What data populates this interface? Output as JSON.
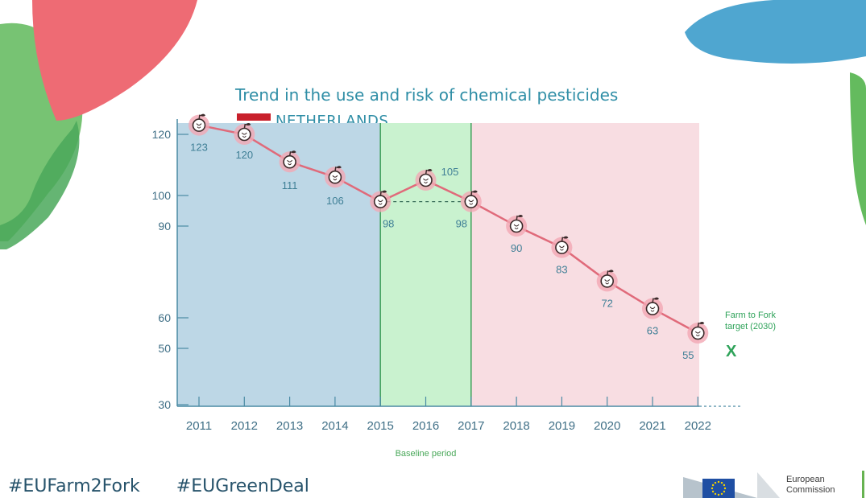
{
  "colors": {
    "accent": "#2f8ea6",
    "line": "#e06a7a",
    "marker": "#f2a7b4",
    "blue_period": "#bdd7e6",
    "green_period": "#c9f2cf",
    "pink_period": "#f8dde2",
    "target": "#2fa35a"
  },
  "header": {
    "title": "Trend in the use and risk of chemical pesticides",
    "country": "NETHERLANDS"
  },
  "footer": {
    "hashtags": [
      "#EUFarm2Fork",
      "#EUGreenDeal"
    ],
    "ec_line1": "European",
    "ec_line2": "Commission"
  },
  "chart_data": {
    "type": "line",
    "title": "Trend in the use and risk of chemical pesticides",
    "subtitle": "NETHERLANDS",
    "x": [
      2011,
      2012,
      2013,
      2014,
      2015,
      2016,
      2017,
      2018,
      2019,
      2020,
      2021,
      2022
    ],
    "series": [
      {
        "values": [
          123,
          120,
          111,
          106,
          98,
          105,
          98,
          90,
          83,
          72,
          63,
          55
        ]
      }
    ],
    "y_ticks": [
      30,
      50,
      60,
      90,
      100,
      120
    ],
    "ylim": [
      30,
      125
    ],
    "xlabel": "Baseline period",
    "periods": [
      {
        "from": 2011,
        "to": 2015,
        "color": "blue"
      },
      {
        "from": 2015,
        "to": 2017,
        "color": "green",
        "label": "Baseline period"
      },
      {
        "from": 2017,
        "to": 2022,
        "color": "pink"
      }
    ],
    "baseline_reference": 98,
    "target": {
      "label_line1": "Farm to Fork",
      "label_line2": "target (2030)",
      "marker": "X"
    },
    "grid": false
  }
}
